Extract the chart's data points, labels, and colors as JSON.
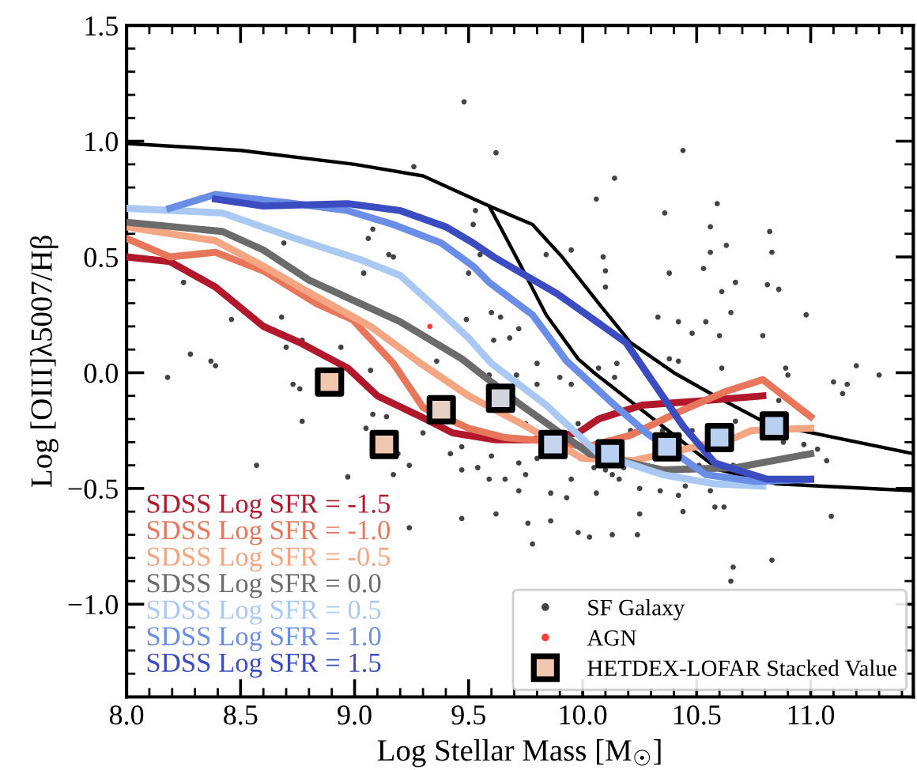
{
  "chart_data": {
    "type": "line",
    "xlabel": "Log Stellar Mass [M$_{☉}$]",
    "ylabel": "Log [OIII]λ5007/Hβ",
    "xlim": [
      8.0,
      11.45
    ],
    "ylim": [
      -1.4,
      1.5
    ],
    "xticks": [
      {
        "value": 8.0,
        "label": "8.0"
      },
      {
        "value": 8.5,
        "label": "8.5"
      },
      {
        "value": 9.0,
        "label": "9.0"
      },
      {
        "value": 9.5,
        "label": "9.5"
      },
      {
        "value": 10.0,
        "label": "10.0"
      },
      {
        "value": 10.5,
        "label": "10.5"
      },
      {
        "value": 11.0,
        "label": "11.0"
      }
    ],
    "yticks": [
      {
        "value": -1.0,
        "label": "−1.0"
      },
      {
        "value": -0.5,
        "label": "−0.5"
      },
      {
        "value": 0.0,
        "label": "0.0"
      },
      {
        "value": 0.5,
        "label": "0.5"
      },
      {
        "value": 1.0,
        "label": "1.0"
      },
      {
        "value": 1.5,
        "label": "1.5"
      }
    ],
    "grid": false,
    "legend": "bottom right",
    "series": [
      {
        "type": "scatter",
        "name": "SF Galaxy",
        "color": "#444444",
        "marker": "circle",
        "x": [
          9.48,
          9.26,
          8.69,
          8.25,
          9.04,
          9.15,
          9.17,
          9.06,
          9.08,
          8.46,
          8.68,
          8.77,
          8.7,
          8.28,
          8.37,
          8.18,
          8.94,
          9.36,
          9.49,
          9.5,
          9.62,
          10.44,
          10.14,
          10.06,
          10.36,
          10.59,
          10.56,
          10.82,
          10.83,
          10.63,
          10.56,
          10.38,
          10.53,
          10.67,
          10.81,
          10.86,
          10.98,
          10.61,
          10.09,
          10.1,
          10.1,
          9.95,
          9.84,
          9.53,
          9.52,
          9.55,
          9.6,
          9.64,
          9.61,
          9.68,
          9.72,
          10.33,
          10.42,
          10.54,
          10.48,
          10.65,
          10.6,
          10.79,
          10.38,
          10.42,
          10.61,
          10.89,
          11.2,
          11.3,
          11.1,
          9.8,
          9.9,
          9.71,
          10.07,
          10.15,
          11.16,
          11.14,
          11.07,
          11.09,
          10.83,
          10.66,
          10.65,
          9.78,
          9.47,
          9.62,
          9.76,
          9.86,
          9.98,
          10.03,
          10.13,
          10.24,
          10.25,
          10.44,
          10.58,
          10.62,
          10.34,
          10.42,
          10.06,
          9.93,
          9.86,
          9.72,
          9.59,
          9.66,
          9.75,
          9.95,
          10.16,
          10.18,
          10.1,
          10.05,
          10.25,
          10.45,
          10.56,
          10.51,
          10.66,
          9.8,
          9.72,
          9.6,
          9.47,
          9.54,
          9.99,
          10.13,
          11.03,
          10.88,
          10.97,
          9.75,
          9.98,
          10.21,
          10.35,
          10.48,
          10.67,
          10.86,
          10.9,
          9.59,
          9.8,
          9.95,
          10.14,
          8.39,
          8.73,
          8.76,
          8.77,
          8.57,
          8.97,
          9.07,
          9.08,
          9.14,
          9.19,
          9.24,
          9.17,
          9.3,
          9.42,
          9.47,
          9.24,
          9.05
        ],
        "values": [
          1.17,
          0.89,
          0.56,
          0.39,
          0.43,
          0.51,
          0.5,
          0.58,
          0.62,
          0.23,
          0.24,
          0.14,
          0.11,
          0.08,
          0.05,
          -0.02,
          0.11,
          0.05,
          0.23,
          0.43,
          0.95,
          0.96,
          0.84,
          0.75,
          0.69,
          0.73,
          0.63,
          0.61,
          0.52,
          0.55,
          0.52,
          0.43,
          0.45,
          0.39,
          0.38,
          0.36,
          0.25,
          0.35,
          0.5,
          0.44,
          0.37,
          0.53,
          0.51,
          0.7,
          0.64,
          0.51,
          0.26,
          0.24,
          0.14,
          0.15,
          0.19,
          0.24,
          0.22,
          0.22,
          0.17,
          0.26,
          0.16,
          0.16,
          0.06,
          0.05,
          0.02,
          0.02,
          0.03,
          -0.01,
          -0.04,
          0.04,
          -0.02,
          -0.01,
          0.02,
          0.04,
          -0.05,
          -0.09,
          -0.38,
          -0.62,
          -0.81,
          -0.84,
          -0.9,
          -0.74,
          -0.63,
          -0.61,
          -0.65,
          -0.64,
          -0.69,
          -0.71,
          -0.7,
          -0.7,
          -0.61,
          -0.6,
          -0.58,
          -0.58,
          -0.51,
          -0.53,
          -0.52,
          -0.54,
          -0.52,
          -0.51,
          -0.46,
          -0.46,
          -0.44,
          -0.46,
          -0.46,
          -0.41,
          -0.42,
          -0.41,
          -0.5,
          -0.49,
          -0.51,
          -0.4,
          -0.4,
          -0.37,
          -0.39,
          -0.36,
          -0.32,
          -0.41,
          -0.37,
          -0.44,
          -0.33,
          -0.3,
          -0.31,
          -0.22,
          -0.22,
          -0.25,
          -0.25,
          -0.25,
          -0.21,
          -0.12,
          -0.01,
          -0.01,
          -0.05,
          -0.05,
          -0.02,
          0.03,
          -0.05,
          -0.07,
          -0.21,
          -0.4,
          -0.45,
          0.01,
          -0.18,
          -0.19,
          -0.35,
          -0.4,
          -0.44,
          -0.26,
          -0.35,
          -0.42,
          -0.67,
          -0.24
        ]
      },
      {
        "type": "scatter",
        "name": "AGN",
        "color": "#ff3b3b",
        "marker": "circle",
        "x": [
          9.33
        ],
        "values": [
          0.2
        ]
      },
      {
        "color": "#000000",
        "x": [
          8.0,
          8.5,
          9.0,
          9.3,
          9.59,
          9.78,
          9.91,
          10.07,
          10.21,
          10.4,
          10.58,
          10.81,
          11.45
        ],
        "values": [
          0.99,
          0.96,
          0.9,
          0.85,
          0.72,
          0.64,
          0.5,
          0.3,
          0.13,
          0.0,
          -0.1,
          -0.22,
          -0.35
        ]
      },
      {
        "color": "#000000",
        "x": [
          9.59,
          9.73,
          9.84,
          9.98,
          10.05,
          10.44,
          10.6,
          10.85,
          11.45
        ],
        "values": [
          0.72,
          0.46,
          0.25,
          0.06,
          0.0,
          -0.3,
          -0.42,
          -0.48,
          -0.51
        ]
      },
      {
        "name": "SDSS Log SFR = -1.5",
        "color": "#b2182b",
        "x": [
          8.0,
          8.19,
          8.39,
          8.6,
          8.76,
          8.97,
          9.1,
          9.29,
          9.43,
          9.62,
          9.78,
          9.98,
          10.07,
          10.26,
          10.54,
          10.79
        ],
        "values": [
          0.5,
          0.48,
          0.37,
          0.2,
          0.13,
          0.02,
          -0.1,
          -0.19,
          -0.26,
          -0.29,
          -0.29,
          -0.26,
          -0.2,
          -0.14,
          -0.12,
          -0.1
        ]
      },
      {
        "name": "SDSS Log SFR = -1.0",
        "color": "#e8765a",
        "x": [
          8.0,
          8.19,
          8.39,
          8.6,
          8.83,
          8.99,
          9.17,
          9.3,
          9.5,
          9.66,
          9.78,
          10.02,
          10.21,
          10.42,
          10.63,
          10.79,
          11.0
        ],
        "values": [
          0.58,
          0.5,
          0.52,
          0.44,
          0.3,
          0.23,
          0.04,
          -0.15,
          -0.24,
          -0.28,
          -0.29,
          -0.32,
          -0.27,
          -0.17,
          -0.08,
          -0.03,
          -0.19
        ]
      },
      {
        "name": "SDSS Log SFR = -0.5",
        "color": "#f4a582",
        "x": [
          8.0,
          8.39,
          8.6,
          8.83,
          9.07,
          9.29,
          9.5,
          9.75,
          10.0,
          10.22,
          10.45,
          10.67,
          10.74,
          11.0
        ],
        "values": [
          0.63,
          0.57,
          0.46,
          0.33,
          0.2,
          0.04,
          -0.1,
          -0.23,
          -0.37,
          -0.38,
          -0.33,
          -0.28,
          -0.25,
          -0.24
        ]
      },
      {
        "name": "SDSS Log SFR = 0.0",
        "color": "#6b6b6b",
        "x": [
          8.0,
          8.42,
          8.6,
          8.8,
          9.0,
          9.2,
          9.47,
          9.73,
          10.03,
          10.35,
          10.67,
          11.0
        ],
        "values": [
          0.65,
          0.61,
          0.53,
          0.4,
          0.31,
          0.22,
          0.06,
          -0.14,
          -0.35,
          -0.42,
          -0.41,
          -0.35
        ]
      },
      {
        "name": "SDSS Log SFR = 0.5",
        "color": "#a9c9f2",
        "x": [
          8.0,
          8.42,
          8.74,
          9.02,
          9.2,
          9.38,
          9.5,
          9.6,
          9.84,
          10.07,
          10.35,
          10.58,
          10.79
        ],
        "values": [
          0.71,
          0.69,
          0.58,
          0.49,
          0.42,
          0.26,
          0.15,
          0.04,
          -0.14,
          -0.35,
          -0.44,
          -0.48,
          -0.49
        ]
      },
      {
        "name": "SDSS Log SFR = 1.0",
        "color": "#6a8de6",
        "x": [
          8.19,
          8.39,
          8.74,
          8.97,
          9.17,
          9.38,
          9.52,
          9.59,
          9.78,
          9.93,
          10.14,
          10.28,
          10.54,
          10.76,
          11.0
        ],
        "values": [
          0.71,
          0.77,
          0.73,
          0.7,
          0.64,
          0.56,
          0.46,
          0.39,
          0.25,
          0.05,
          -0.14,
          -0.26,
          -0.44,
          -0.47,
          -0.46
        ]
      },
      {
        "name": "SDSS Log SFR = 1.5",
        "color": "#3a4cc0",
        "x": [
          8.39,
          8.6,
          8.97,
          9.2,
          9.4,
          9.52,
          9.61,
          9.89,
          10.19,
          10.35,
          10.44,
          10.58,
          10.81,
          11.0
        ],
        "values": [
          0.75,
          0.72,
          0.73,
          0.7,
          0.63,
          0.56,
          0.5,
          0.34,
          0.13,
          -0.1,
          -0.23,
          -0.39,
          -0.46,
          -0.46
        ]
      },
      {
        "type": "scatter",
        "name": "HETDEX-LOFAR Stacked Value",
        "marker": "square",
        "color": "#f0c8b0",
        "colors": [
          "#f0c8b0",
          "#f0c8b0",
          "#e8d0c4",
          "#d0d4dc",
          "#c4d4ec",
          "#b8d0f2",
          "#b8d0f2",
          "#b8d0f2",
          "#b8d0f2"
        ],
        "x": [
          8.89,
          9.13,
          9.38,
          9.64,
          9.87,
          10.12,
          10.37,
          10.6,
          10.84
        ],
        "values": [
          -0.04,
          -0.31,
          -0.16,
          -0.11,
          -0.31,
          -0.35,
          -0.32,
          -0.28,
          -0.23
        ]
      }
    ]
  }
}
